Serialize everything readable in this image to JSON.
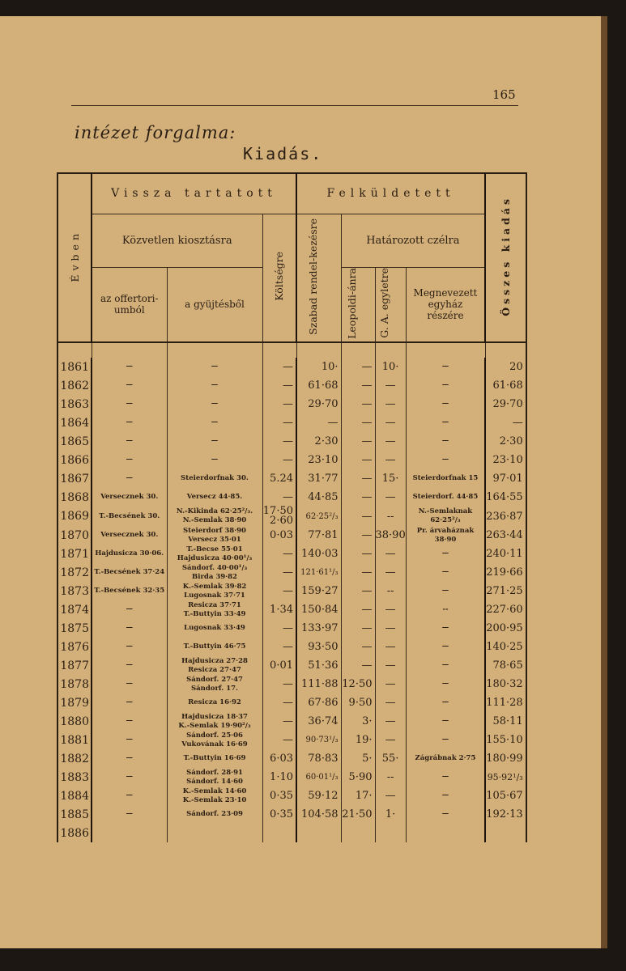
{
  "page_number": "165",
  "subtitle": "intézet forgalma:",
  "title": "Kiadás.",
  "headers": {
    "year": "Évben",
    "retained": "Vissza tartatott",
    "sent": "Felküldetett",
    "direct": "Közvetlen kiosztásra",
    "offertory": "az offertori-umból",
    "collection": "a gyüjtésből",
    "costs": "Költségre",
    "free": "Szabad rendel-kezésre",
    "designated": "Határozott czélra",
    "leopoldi": "Leopoldi-ánra",
    "ga": "G. A. egyletre",
    "named_church": "Megnevezett egyház részére",
    "total": "Összes kiadás"
  },
  "rows": [
    {
      "year": "1861",
      "offertory": "—",
      "collection": [
        "—"
      ],
      "costs": [
        "—"
      ],
      "free": "10·",
      "leopoldi": "—",
      "ga": "10·",
      "named": [
        "—"
      ],
      "total": "20"
    },
    {
      "year": "1862",
      "offertory": "—",
      "collection": [
        "—"
      ],
      "costs": [
        "—"
      ],
      "free": "61·68",
      "leopoldi": "—",
      "ga": "—",
      "named": [
        "—"
      ],
      "total": "61·68"
    },
    {
      "year": "1863",
      "offertory": "—",
      "collection": [
        "—"
      ],
      "costs": [
        "—"
      ],
      "free": "29·70",
      "leopoldi": "—",
      "ga": "—",
      "named": [
        "—"
      ],
      "total": "29·70"
    },
    {
      "year": "1864",
      "offertory": "—",
      "collection": [
        "—"
      ],
      "costs": [
        "—"
      ],
      "free": "—",
      "leopoldi": "—",
      "ga": "—",
      "named": [
        "—"
      ],
      "total": "—"
    },
    {
      "year": "1865",
      "offertory": "—",
      "collection": [
        "—"
      ],
      "costs": [
        "—"
      ],
      "free": "2·30",
      "leopoldi": "—",
      "ga": "—",
      "named": [
        "—"
      ],
      "total": "2·30"
    },
    {
      "year": "1866",
      "offertory": "—",
      "collection": [
        "—"
      ],
      "costs": [
        "—"
      ],
      "free": "23·10",
      "leopoldi": "—",
      "ga": "—",
      "named": [
        "—"
      ],
      "total": "23·10"
    },
    {
      "year": "1867",
      "offertory": "—",
      "collection": [
        "Steierdorfnak 30."
      ],
      "costs": [
        "5.24"
      ],
      "free": "31·77",
      "leopoldi": "—",
      "ga": "15·",
      "named": [
        "Steierdorfnak 15"
      ],
      "total": "97·01"
    },
    {
      "year": "1868",
      "offertory": "Versecznek 30.",
      "collection": [
        "Versecz 44·85."
      ],
      "costs": [
        "—"
      ],
      "free": "44·85",
      "leopoldi": "—",
      "ga": "—",
      "named": [
        "Steierdorf. 44·85"
      ],
      "total": "164·55"
    },
    {
      "year": "1869",
      "offertory": "T.-Becsének 30.",
      "collection": [
        "N.-Kikinda 62·25²/₃.",
        "N.-Semlak 38·90"
      ],
      "costs": [
        "17·50",
        "2·60"
      ],
      "free": "62·25²/₃",
      "leopoldi": "—",
      "ga": "--",
      "named": [
        "N.-Semlaknak",
        "62·25²/₃"
      ],
      "total": "236·87"
    },
    {
      "year": "1870",
      "offertory": "Versecznek 30.",
      "collection": [
        "Steierdorf 38·90",
        "Versecz 35·01"
      ],
      "costs": [
        "0·03"
      ],
      "free": "77·81",
      "leopoldi": "—",
      "ga": "38·90",
      "named": [
        "Pr. árvaháznak",
        "38·90"
      ],
      "total": "263·44"
    },
    {
      "year": "1871",
      "offertory": "Hajdusicza 30·06.",
      "collection": [
        "T.-Becse 55·01",
        "Hajdusicza 40·00¹/₃"
      ],
      "costs": [
        "—"
      ],
      "free": "140·03",
      "leopoldi": "—",
      "ga": "—",
      "named": [
        "—"
      ],
      "total": "240·11"
    },
    {
      "year": "1872",
      "offertory": "T.-Becsének 37·24",
      "collection": [
        "Sándorf. 40·00¹/₃",
        "Birda 39·82"
      ],
      "costs": [
        "—"
      ],
      "free": "121·61¹/₃",
      "leopoldi": "—",
      "ga": "—",
      "named": [
        "—"
      ],
      "total": "219·66"
    },
    {
      "year": "1873",
      "offertory": "T.-Becsének 32·35",
      "collection": [
        "K.-Semlak 39·82",
        "Lugosnak 37·71"
      ],
      "costs": [
        "—"
      ],
      "free": "159·27",
      "leopoldi": "—",
      "ga": "--",
      "named": [
        "—"
      ],
      "total": "271·25"
    },
    {
      "year": "1874",
      "offertory": "—",
      "collection": [
        "Resicza 37·71",
        "T.-Buttyin 33·49"
      ],
      "costs": [
        "1·34"
      ],
      "free": "150·84",
      "leopoldi": "—",
      "ga": "—",
      "named": [
        "--"
      ],
      "total": "227·60"
    },
    {
      "year": "1875",
      "offertory": "—",
      "collection": [
        "Lugosnak 33·49"
      ],
      "costs": [
        "—"
      ],
      "free": "133·97",
      "leopoldi": "—",
      "ga": "—",
      "named": [
        "—"
      ],
      "total": "200·95"
    },
    {
      "year": "1876",
      "offertory": "—",
      "collection": [
        "T.-Buttyin 46·75"
      ],
      "costs": [
        "—"
      ],
      "free": "93·50",
      "leopoldi": "—",
      "ga": "—",
      "named": [
        "—"
      ],
      "total": "140·25"
    },
    {
      "year": "1877",
      "offertory": "—",
      "collection": [
        "Hajdusicza 27·28",
        "Resicza 27·47"
      ],
      "costs": [
        "0·01"
      ],
      "free": "51·36",
      "leopoldi": "—",
      "ga": "—",
      "named": [
        "—"
      ],
      "total": "78·65"
    },
    {
      "year": "1878",
      "offertory": "—",
      "collection": [
        "Sándorf. 27·47",
        "Sándorf. 17."
      ],
      "costs": [
        "—"
      ],
      "free": "111·88",
      "leopoldi": "12·50",
      "ga": "—",
      "named": [
        "—"
      ],
      "total": "180·32"
    },
    {
      "year": "1879",
      "offertory": "—",
      "collection": [
        "Resicza 16·92"
      ],
      "costs": [
        "—"
      ],
      "free": "67·86",
      "leopoldi": "9·50",
      "ga": "—",
      "named": [
        "—"
      ],
      "total": "111·28"
    },
    {
      "year": "1880",
      "offertory": "—",
      "collection": [
        "Hajdusicza 18·37",
        "K.-Semlak 19·90²/₃"
      ],
      "costs": [
        "—"
      ],
      "free": "36·74",
      "leopoldi": "3·",
      "ga": "—",
      "named": [
        "—"
      ],
      "total": "58·11"
    },
    {
      "year": "1881",
      "offertory": "—",
      "collection": [
        "Sándorf. 25·06",
        "Vukovának 16·69"
      ],
      "costs": [
        "—"
      ],
      "free": "90·73¹/₃",
      "leopoldi": "19·",
      "ga": "—",
      "named": [
        "—"
      ],
      "total": "155·10"
    },
    {
      "year": "1882",
      "offertory": "—",
      "collection": [
        "T.-Buttyin 16·69"
      ],
      "costs": [
        "6·03"
      ],
      "free": "78·83",
      "leopoldi": "5·",
      "ga": "55·",
      "named": [
        "Zágrábnak 2·75"
      ],
      "total": "180·99"
    },
    {
      "year": "1883",
      "offertory": "—",
      "collection": [
        "Sándorf. 28·91",
        "Sándorf. 14·60"
      ],
      "costs": [
        "1·10"
      ],
      "free": "60·01¹/₃",
      "leopoldi": "5·90",
      "ga": "--",
      "named": [
        "—"
      ],
      "total": "95·92¹/₃"
    },
    {
      "year": "1884",
      "offertory": "—",
      "collection": [
        "K.-Semlak 14·60",
        "K.-Semlak 23·10"
      ],
      "costs": [
        "0·35"
      ],
      "free": "59·12",
      "leopoldi": "17·",
      "ga": "—",
      "named": [
        "—"
      ],
      "total": "105·67"
    },
    {
      "year": "1885",
      "offertory": "—",
      "collection": [
        "Sándorf. 23·09"
      ],
      "costs": [
        "0·35"
      ],
      "free": "104·58",
      "leopoldi": "21·50",
      "ga": "1·",
      "named": [
        "—"
      ],
      "total": "192·13"
    },
    {
      "year": "1886",
      "offertory": "",
      "collection": [
        ""
      ],
      "costs": [
        ""
      ],
      "free": "",
      "leopoldi": "",
      "ga": "",
      "named": [
        ""
      ],
      "total": ""
    }
  ]
}
